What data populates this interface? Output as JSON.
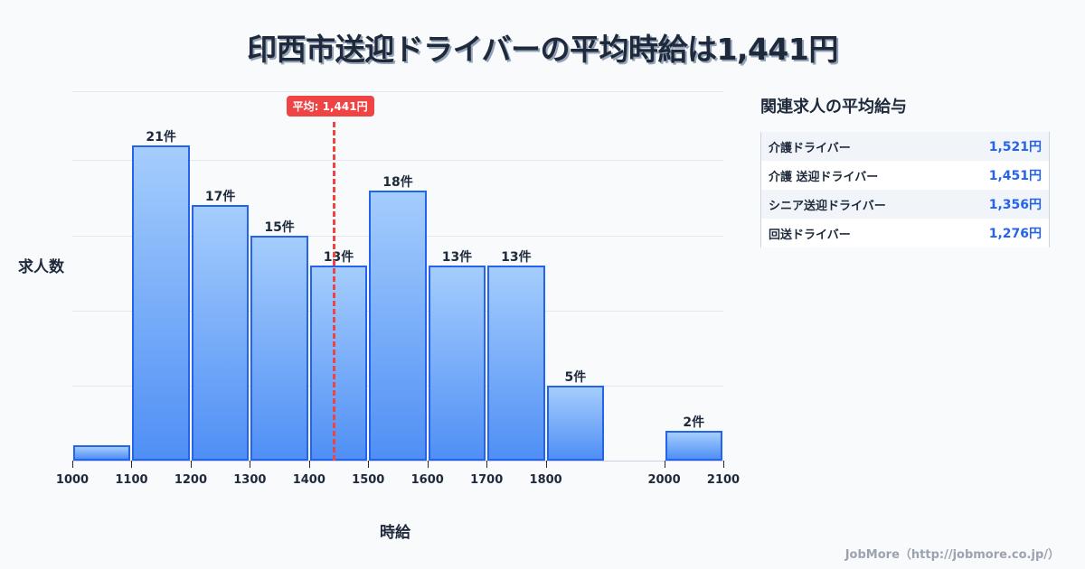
{
  "title": "印西市送迎ドライバーの平均時給は1,441円",
  "axis": {
    "ylabel": "求人数",
    "xlabel": "時給"
  },
  "average": {
    "label": "平均: 1,441円",
    "value": 1441,
    "color": "#ef4444"
  },
  "side": {
    "title": "関連求人の平均給与",
    "rows": [
      {
        "name": "介護ドライバー",
        "value": "1,521円"
      },
      {
        "name": "介護 送迎ドライバー",
        "value": "1,451円"
      },
      {
        "name": "シニア送迎ドライバー",
        "value": "1,356円"
      },
      {
        "name": "回送ドライバー",
        "value": "1,276円"
      }
    ]
  },
  "footer": "JobMore（http://jobmore.co.jp/）",
  "chart_data": {
    "type": "bar",
    "title": "印西市送迎ドライバーの平均時給は1,441円",
    "xlabel": "時給",
    "ylabel": "求人数",
    "categories": [
      "1000-1100",
      "1100-1200",
      "1200-1300",
      "1300-1400",
      "1400-1500",
      "1500-1600",
      "1600-1700",
      "1700-1800",
      "1800-1900",
      "1900-2000",
      "2000-2100"
    ],
    "values": [
      1,
      21,
      17,
      15,
      13,
      18,
      13,
      13,
      5,
      0,
      2
    ],
    "labels": [
      "",
      "21件",
      "17件",
      "15件",
      "13件",
      "18件",
      "13件",
      "13件",
      "5件",
      "",
      "2件"
    ],
    "x_ticks": [
      1000,
      1100,
      1200,
      1300,
      1400,
      1500,
      1600,
      1700,
      1800,
      2000,
      2100
    ],
    "xlim": [
      1000,
      2100
    ],
    "ylim": [
      0,
      24.6
    ],
    "grid": true,
    "annotations": [
      {
        "type": "vline",
        "x": 1441,
        "label": "平均: 1,441円"
      }
    ],
    "bar_color": "#4f8ff5",
    "bar_border": "#2563eb"
  }
}
